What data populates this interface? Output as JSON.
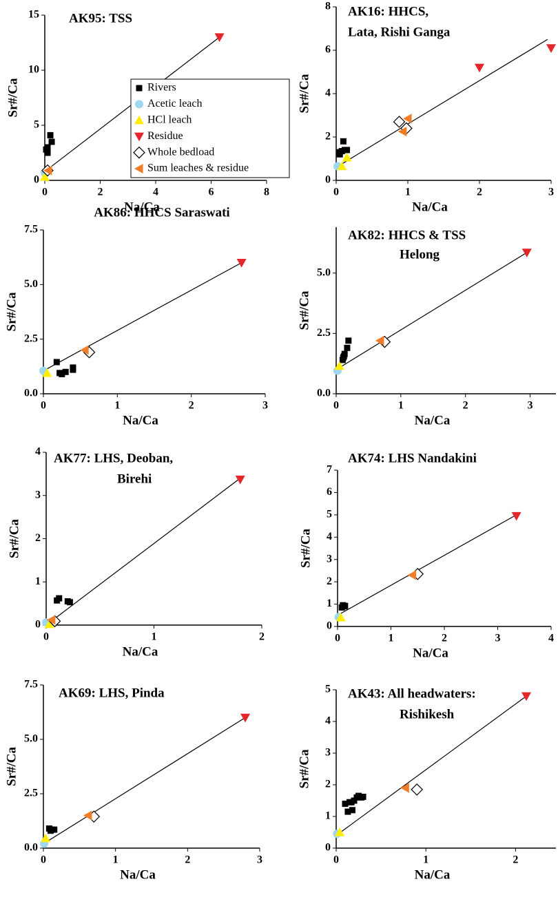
{
  "chart_data": [
    {
      "type": "scatter",
      "title": [
        "AK95: TSS"
      ],
      "xlabel": "Na/Ca",
      "ylabel": "Sr#/Ca",
      "xlim": [
        0,
        8
      ],
      "ylim": [
        0,
        15
      ],
      "xticks": [
        0,
        2,
        4,
        6,
        8
      ],
      "yticks": [
        0,
        5,
        10,
        15
      ],
      "legend": true,
      "fit_line": {
        "x": [
          0,
          6.3
        ],
        "y": [
          0.8,
          13
        ]
      },
      "series": [
        {
          "name": "Rivers",
          "marker": "square",
          "color": "#000000",
          "x": [
            0.05,
            0.1,
            0.1,
            0.2,
            0.25
          ],
          "y": [
            2.8,
            2.5,
            3,
            4.1,
            3.5
          ]
        },
        {
          "name": "Acetic leach",
          "marker": "circle",
          "color": "#9fd7ef",
          "x": [
            0
          ],
          "y": [
            0.7
          ]
        },
        {
          "name": "HCl leach",
          "marker": "triangle-up",
          "color": "#ffee00",
          "x": [
            0
          ],
          "y": [
            0.3
          ]
        },
        {
          "name": "Residue",
          "marker": "triangle-down",
          "color": "#e4262b",
          "x": [
            6.3
          ],
          "y": [
            13
          ]
        },
        {
          "name": "Whole bedload",
          "marker": "diamond",
          "color": "#ffffff",
          "x": [
            0.1
          ],
          "y": [
            0.9
          ]
        },
        {
          "name": "Sum leaches & residue",
          "marker": "triangle-left",
          "color": "#ef7d27",
          "x": [
            0.12
          ],
          "y": [
            0.9
          ]
        }
      ]
    },
    {
      "type": "scatter",
      "title": [
        "AK16:  HHCS,",
        "Lata, Rishi Ganga"
      ],
      "xlabel": "Na/Ca",
      "ylabel": "Sr#/Ca",
      "xlim": [
        0,
        3
      ],
      "ylim": [
        0,
        8
      ],
      "xticks": [
        0,
        1,
        2,
        3
      ],
      "yticks": [
        0,
        2,
        4,
        6,
        8
      ],
      "fit_line": {
        "x": [
          0,
          2.95
        ],
        "y": [
          0.6,
          6.5
        ]
      },
      "series": [
        {
          "marker": "square",
          "color": "#000000",
          "x": [
            0.05,
            0.05,
            0.08,
            0.12,
            0.15,
            0.1
          ],
          "y": [
            1.2,
            1.3,
            1.35,
            1.4,
            1.4,
            1.8
          ]
        },
        {
          "marker": "circle",
          "color": "#9fd7ef",
          "x": [
            0.02
          ],
          "y": [
            0.65
          ]
        },
        {
          "marker": "triangle-up",
          "color": "#ffee00",
          "x": [
            0.08,
            0.15
          ],
          "y": [
            0.65,
            1.05
          ]
        },
        {
          "marker": "triangle-down",
          "color": "#e4262b",
          "x": [
            2,
            3
          ],
          "y": [
            5.2,
            6.1
          ]
        },
        {
          "marker": "diamond",
          "color": "#ffffff",
          "x": [
            0.88,
            0.98
          ],
          "y": [
            2.7,
            2.4
          ]
        },
        {
          "marker": "triangle-left",
          "color": "#ef7d27",
          "x": [
            0.93,
            1.0
          ],
          "y": [
            2.25,
            2.85
          ]
        }
      ]
    },
    {
      "type": "scatter",
      "title": [
        "AK86: HHCS  Saraswati"
      ],
      "xlabel": "Na/Ca",
      "ylabel": "Sr#/Ca",
      "xlim": [
        0,
        3
      ],
      "ylim": [
        0,
        7.5
      ],
      "xticks": [
        0,
        1,
        2,
        3
      ],
      "yticks": [
        {
          "value": 0,
          "label": "0.0"
        },
        {
          "value": 2.5,
          "label": "2.5"
        },
        {
          "value": 5,
          "label": "5.0"
        },
        {
          "value": 7.5,
          "label": "7.5"
        }
      ],
      "fit_line": {
        "x": [
          0,
          2.68
        ],
        "y": [
          1.05,
          6.0
        ]
      },
      "series": [
        {
          "marker": "square",
          "color": "#000000",
          "x": [
            0.18,
            0.22,
            0.25,
            0.3,
            0.4,
            0.4
          ],
          "y": [
            1.45,
            0.95,
            0.9,
            1.0,
            1.1,
            1.2
          ]
        },
        {
          "marker": "circle",
          "color": "#9fd7ef",
          "x": [
            0
          ],
          "y": [
            1.05
          ]
        },
        {
          "marker": "triangle-up",
          "color": "#ffee00",
          "x": [
            0.05
          ],
          "y": [
            0.95
          ]
        },
        {
          "marker": "triangle-down",
          "color": "#e4262b",
          "x": [
            2.68
          ],
          "y": [
            6.0
          ]
        },
        {
          "marker": "diamond",
          "color": "#ffffff",
          "x": [
            0.62
          ],
          "y": [
            1.9
          ]
        },
        {
          "marker": "triangle-left",
          "color": "#ef7d27",
          "x": [
            0.56
          ],
          "y": [
            2.0
          ]
        }
      ]
    },
    {
      "type": "scatter",
      "title": [
        "AK82: HHCS & TSS",
        "Helong"
      ],
      "xlabel": "Na/Ca",
      "ylabel": "Sr#/Ca",
      "xlim": [
        0,
        3.4
      ],
      "ylim": [
        0,
        6.9
      ],
      "xticks": [
        0,
        1,
        2,
        3
      ],
      "yticks": [
        {
          "value": 0,
          "label": "0.0"
        },
        {
          "value": 2.5,
          "label": "2.5"
        },
        {
          "value": 5,
          "label": "5.0"
        }
      ],
      "fit_line": {
        "x": [
          0,
          2.95
        ],
        "y": [
          1.0,
          5.85
        ]
      },
      "series": [
        {
          "marker": "square",
          "color": "#000000",
          "x": [
            0.1,
            0.11,
            0.12,
            0.13,
            0.17,
            0.19
          ],
          "y": [
            1.4,
            1.5,
            1.55,
            1.65,
            1.9,
            2.2
          ]
        },
        {
          "marker": "circle",
          "color": "#9fd7ef",
          "x": [
            0.02
          ],
          "y": [
            0.95
          ]
        },
        {
          "marker": "triangle-up",
          "color": "#ffee00",
          "x": [
            0.05
          ],
          "y": [
            1.15
          ]
        },
        {
          "marker": "triangle-down",
          "color": "#e4262b",
          "x": [
            2.95
          ],
          "y": [
            5.85
          ]
        },
        {
          "marker": "diamond",
          "color": "#ffffff",
          "x": [
            0.75
          ],
          "y": [
            2.15
          ]
        },
        {
          "marker": "triangle-left",
          "color": "#ef7d27",
          "x": [
            0.68
          ],
          "y": [
            2.2
          ]
        }
      ]
    },
    {
      "type": "scatter",
      "title": [
        "AK77: LHS, Deoban,",
        "Birehi"
      ],
      "xlabel": "Na/Ca",
      "ylabel": "Sr#/Ca",
      "xlim": [
        0,
        2
      ],
      "ylim": [
        0,
        4
      ],
      "xticks": [
        0,
        1,
        2
      ],
      "yticks": [
        0,
        1,
        2,
        3,
        4
      ],
      "fit_line": {
        "x": [
          0,
          1.8
        ],
        "y": [
          0,
          3.4
        ]
      },
      "series": [
        {
          "marker": "square",
          "color": "#000000",
          "x": [
            0.1,
            0.12,
            0.2,
            0.22
          ],
          "y": [
            0.57,
            0.62,
            0.55,
            0.53
          ]
        },
        {
          "marker": "circle",
          "color": "#9fd7ef",
          "x": [
            0
          ],
          "y": [
            0.06
          ]
        },
        {
          "marker": "triangle-up",
          "color": "#ffee00",
          "x": [
            0.03
          ],
          "y": [
            0.02
          ]
        },
        {
          "marker": "triangle-down",
          "color": "#e4262b",
          "x": [
            1.8
          ],
          "y": [
            3.37
          ]
        },
        {
          "marker": "diamond",
          "color": "#ffffff",
          "x": [
            0.08
          ],
          "y": [
            0.09
          ]
        },
        {
          "marker": "triangle-left",
          "color": "#ef7d27",
          "x": [
            0.05
          ],
          "y": [
            0.12
          ]
        }
      ]
    },
    {
      "type": "scatter",
      "title": [
        "AK74: LHS Nandakini"
      ],
      "xlabel": "Na/Ca",
      "ylabel": "Sr#/Ca",
      "xlim": [
        0,
        4
      ],
      "ylim": [
        0,
        7
      ],
      "xticks": [
        0,
        1,
        2,
        3,
        4
      ],
      "yticks": [
        0,
        1,
        2,
        3,
        4,
        5,
        6,
        7
      ],
      "fit_line": {
        "x": [
          0,
          3.35
        ],
        "y": [
          0.5,
          5.0
        ]
      },
      "series": [
        {
          "marker": "square",
          "color": "#000000",
          "x": [
            0.08,
            0.1,
            0.12,
            0.14
          ],
          "y": [
            0.85,
            0.95,
            0.9,
            0.92
          ]
        },
        {
          "marker": "circle",
          "color": "#9fd7ef",
          "x": [
            0.02
          ],
          "y": [
            0.42
          ]
        },
        {
          "marker": "triangle-up",
          "color": "#ffee00",
          "x": [
            0.06
          ],
          "y": [
            0.4
          ]
        },
        {
          "marker": "triangle-down",
          "color": "#e4262b",
          "x": [
            3.35
          ],
          "y": [
            4.95
          ]
        },
        {
          "marker": "diamond",
          "color": "#ffffff",
          "x": [
            1.5
          ],
          "y": [
            2.35
          ]
        },
        {
          "marker": "triangle-left",
          "color": "#ef7d27",
          "x": [
            1.4
          ],
          "y": [
            2.3
          ]
        }
      ]
    },
    {
      "type": "scatter",
      "title": [
        "AK69: LHS, Pinda"
      ],
      "xlabel": "Na/Ca",
      "ylabel": "Sr#/Ca",
      "xlim": [
        0,
        3
      ],
      "ylim": [
        0,
        7.5
      ],
      "xticks": [
        0,
        1,
        2,
        3
      ],
      "yticks": [
        {
          "value": 0,
          "label": "0.0"
        },
        {
          "value": 2.5,
          "label": "2.5"
        },
        {
          "value": 5,
          "label": "5.0"
        },
        {
          "value": 7.5,
          "label": "7.5"
        }
      ],
      "fit_line": {
        "x": [
          0,
          2.8
        ],
        "y": [
          0.2,
          6.0
        ]
      },
      "series": [
        {
          "marker": "square",
          "color": "#000000",
          "x": [
            0.08,
            0.1,
            0.12,
            0.15
          ],
          "y": [
            0.9,
            0.8,
            0.85,
            0.85
          ]
        },
        {
          "marker": "circle",
          "color": "#9fd7ef",
          "x": [
            0.01
          ],
          "y": [
            0.2
          ]
        },
        {
          "marker": "triangle-up",
          "color": "#ffee00",
          "x": [
            0.03
          ],
          "y": [
            0.45
          ]
        },
        {
          "marker": "triangle-down",
          "color": "#e4262b",
          "x": [
            2.8
          ],
          "y": [
            6.0
          ]
        },
        {
          "marker": "diamond",
          "color": "#ffffff",
          "x": [
            0.7
          ],
          "y": [
            1.45
          ]
        },
        {
          "marker": "triangle-left",
          "color": "#ef7d27",
          "x": [
            0.62
          ],
          "y": [
            1.5
          ]
        }
      ]
    },
    {
      "type": "scatter",
      "title": [
        "AK43: All headwaters:",
        "Rishikesh"
      ],
      "xlabel": "Na/Ca",
      "ylabel": "Sr#/Ca",
      "xlim": [
        0,
        2.45
      ],
      "ylim": [
        0,
        5
      ],
      "xticks": [
        0,
        1,
        2
      ],
      "yticks": [
        0,
        1,
        2,
        3,
        4,
        5
      ],
      "fit_line": {
        "x": [
          0,
          2.12
        ],
        "y": [
          0.4,
          4.8
        ]
      },
      "series": [
        {
          "marker": "square",
          "color": "#000000",
          "x": [
            0.1,
            0.13,
            0.15,
            0.17,
            0.18,
            0.2,
            0.23,
            0.25,
            0.28,
            0.3
          ],
          "y": [
            1.4,
            1.15,
            1.45,
            1.45,
            1.2,
            1.5,
            1.6,
            1.65,
            1.6,
            1.62
          ]
        },
        {
          "marker": "circle",
          "color": "#9fd7ef",
          "x": [
            0.01
          ],
          "y": [
            0.45
          ]
        },
        {
          "marker": "triangle-up",
          "color": "#ffee00",
          "x": [
            0.04
          ],
          "y": [
            0.5
          ]
        },
        {
          "marker": "triangle-down",
          "color": "#e4262b",
          "x": [
            2.12
          ],
          "y": [
            4.8
          ]
        },
        {
          "marker": "diamond",
          "color": "#ffffff",
          "x": [
            0.9
          ],
          "y": [
            1.85
          ]
        },
        {
          "marker": "triangle-left",
          "color": "#ef7d27",
          "x": [
            0.77
          ],
          "y": [
            1.9
          ]
        }
      ]
    }
  ]
}
